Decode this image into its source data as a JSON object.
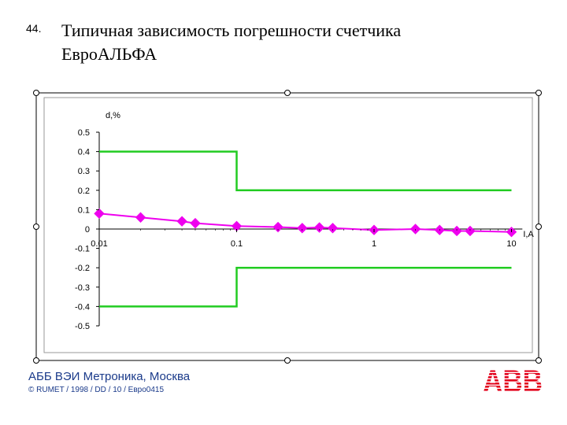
{
  "slide": {
    "number": "44.",
    "title_line1": "Типичная зависимость погрешности счетчика",
    "title_line2": "ЕвроАЛЬФА"
  },
  "footer": {
    "company": "АББ ВЭИ Метроника, Москва",
    "copyright": "© RUMET / 1998 / DD / 10 / Евро0415"
  },
  "logo": {
    "text": "ABB",
    "color": "#e2001a"
  },
  "chart_data": {
    "type": "line",
    "ylabel": "d,%",
    "xlabel": "I,A",
    "x_scale": "log",
    "xlim": [
      0.01,
      12
    ],
    "ylim": [
      -0.5,
      0.5
    ],
    "y_ticks": [
      0.5,
      0.4,
      0.3,
      0.2,
      0.1,
      0,
      -0.1,
      -0.2,
      -0.3,
      -0.4,
      -0.5
    ],
    "y_tick_labels": [
      "0.5",
      "0.4",
      "0.3",
      "0.2",
      "0.1",
      "0",
      "-0.1",
      "-0.2",
      "-0.3",
      "-0.4",
      "-0.5"
    ],
    "x_ticks": [
      0.01,
      0.1,
      1,
      10
    ],
    "x_tick_labels": [
      "0.01",
      "0.1",
      "1",
      "10"
    ],
    "grid": false,
    "limits": {
      "color": "#22cc22",
      "upper": [
        {
          "x": 0.01,
          "y": 0.4
        },
        {
          "x": 0.1,
          "y": 0.4
        },
        {
          "x": 0.1,
          "y": 0.2
        },
        {
          "x": 10,
          "y": 0.2
        }
      ],
      "lower": [
        {
          "x": 0.01,
          "y": -0.4
        },
        {
          "x": 0.1,
          "y": -0.4
        },
        {
          "x": 0.1,
          "y": -0.2
        },
        {
          "x": 10,
          "y": -0.2
        }
      ]
    },
    "series": [
      {
        "color": "#ee00ee",
        "marker": "diamond",
        "points": [
          {
            "x": 0.01,
            "y": 0.08
          },
          {
            "x": 0.02,
            "y": 0.06
          },
          {
            "x": 0.04,
            "y": 0.04
          },
          {
            "x": 0.05,
            "y": 0.03
          },
          {
            "x": 0.1,
            "y": 0.015
          },
          {
            "x": 0.2,
            "y": 0.01
          },
          {
            "x": 0.3,
            "y": 0.005
          },
          {
            "x": 0.4,
            "y": 0.008
          },
          {
            "x": 0.5,
            "y": 0.005
          },
          {
            "x": 1,
            "y": -0.005
          },
          {
            "x": 2,
            "y": 0
          },
          {
            "x": 3,
            "y": -0.005
          },
          {
            "x": 4,
            "y": -0.01
          },
          {
            "x": 5,
            "y": -0.01
          },
          {
            "x": 10,
            "y": -0.015
          }
        ]
      }
    ]
  }
}
